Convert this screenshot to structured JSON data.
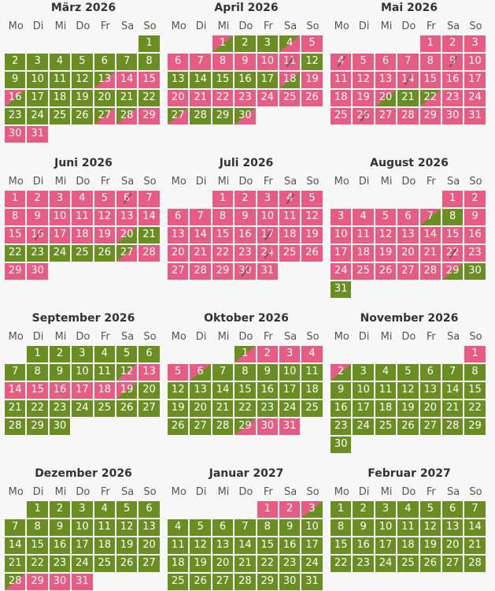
{
  "weekdays": [
    "Mo",
    "Di",
    "Mi",
    "Do",
    "Fr",
    "Sa",
    "So"
  ],
  "colors": {
    "free": "#6b8e23",
    "booked": "#e75c82"
  },
  "months": [
    {
      "title": "März 2026",
      "offset": 6,
      "days": "ggggggggggggggrrrrgggggggggggggrrrr",
      "codes": "gggggggggggggrgrrrgggggrrrrrgrgrrrr",
      "raw": "g,g,g,g,g,g,g,g,g,g,g,g,gr,r,r,rg,g,g,g,g,g,g,g,g,g,g,gr,gr,r,r,r"
    },
    {
      "title": "April 2026",
      "offset": 2,
      "raw": "rg,g,g,gr,r,r,r,r,r,r,rx,g,g,g,g,g,g,rg,r,r,r,r,r,r,r,r,gr,g,g,gr"
    },
    {
      "title": "Mai 2026",
      "offset": 4,
      "raw": "r,r,r,rx,r,r,r,r,rx,r,r,r,r,rx,r,r,r,r,r,rg,g,gr,r,r,r,rx,r,r,r,r,r"
    },
    {
      "title": "Juni 2026",
      "offset": 0,
      "raw": "r,r,r,r,r,rx,r,r,r,r,r,r,r,r,r,rx,r,r,r,rg,g,g,g,g,g,g,gr,r,r,r"
    },
    {
      "title": "Juli 2026",
      "offset": 2,
      "raw": "r,r,r,rx,r,r,r,r,r,r,r,r,r,r,r,r,rx,r,r,r,r,r,r,rx,r,r,r,r,r,rx,r"
    },
    {
      "title": "August 2026",
      "offset": 5,
      "raw": "r,r,r,r,r,r,rg,g,r,r,r,r,r,r,r,r,r,r,r,r,r,rx,r,r,r,r,r,r,rg,g,g"
    },
    {
      "title": "September 2026",
      "offset": 1,
      "raw": "g,g,g,g,g,g,g,g,g,g,g,gr,r,r,r,r,r,r,rg,g,g,g,g,g,g,g,g,g,g,g"
    },
    {
      "title": "Oktober 2026",
      "offset": 3,
      "raw": "gr,r,r,r,r,rg,g,g,g,g,g,g,g,g,g,g,g,g,g,g,g,g,g,g,g,g,g,g,gr,r,r"
    },
    {
      "title": "November 2026",
      "offset": 6,
      "raw": "r,rg,g,g,g,g,g,g,g,g,g,g,g,g,g,g,g,g,g,g,g,g,g,g,g,g,g,g,g,g"
    },
    {
      "title": "Dezember 2026",
      "offset": 1,
      "raw": "g,g,g,g,g,g,g,g,g,g,g,g,g,g,g,g,g,g,g,g,g,g,g,g,g,g,g,gr,r,r,r"
    },
    {
      "title": "Januar 2027",
      "offset": 4,
      "raw": "r,r,rg,g,g,g,g,g,g,g,g,g,g,g,g,g,g,g,g,g,g,g,g,g,g,g,g,g,g,g,g"
    },
    {
      "title": "Februar 2027",
      "offset": 0,
      "raw": "g,g,g,g,g,g,g,g,g,g,g,g,g,g,g,g,g,g,g,g,g,g,g,g,g,g,g,g"
    }
  ]
}
